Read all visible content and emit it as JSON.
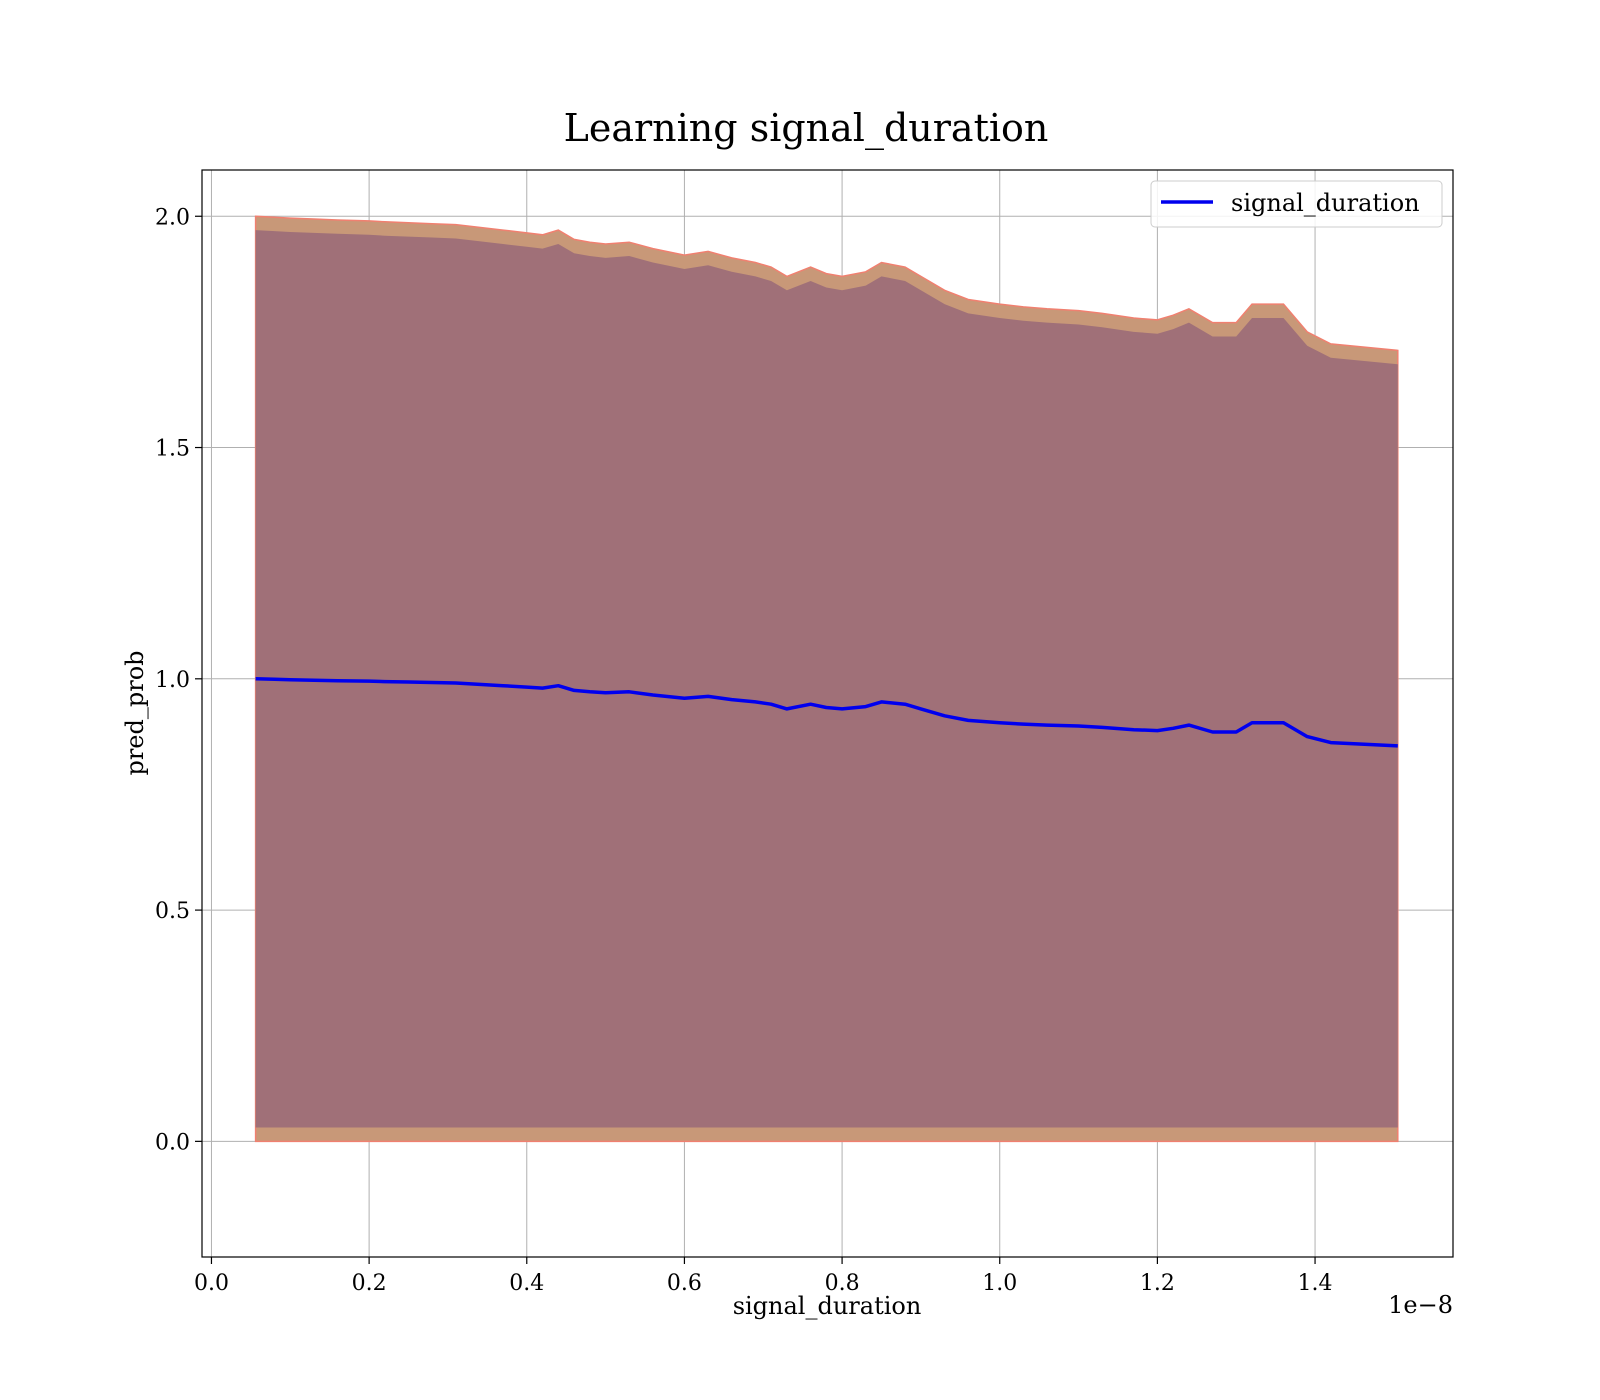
{
  "chart_data": {
    "type": "area",
    "title": "Learning signal_duration",
    "xlabel": "signal_duration",
    "ylabel": "pred_prob",
    "x_offset_text": "1e−8",
    "x_scale_note": "x values are multiples of 1e-8",
    "xlim": [
      -0.012,
      1.575
    ],
    "ylim": [
      -0.25,
      2.1
    ],
    "x_ticks": [
      0.0,
      0.2,
      0.4,
      0.6,
      0.8,
      1.0,
      1.2,
      1.4
    ],
    "x_tick_labels": [
      "0.0",
      "0.2",
      "0.4",
      "0.6",
      "0.8",
      "1.0",
      "1.2",
      "1.4"
    ],
    "y_ticks": [
      0.0,
      0.5,
      1.0,
      1.5,
      2.0
    ],
    "y_tick_labels": [
      "0.0",
      "0.5",
      "1.0",
      "1.5",
      "2.0"
    ],
    "grid": true,
    "legend_position": "top-right",
    "colors": {
      "line": "#0000ee",
      "outer_band": "#c89878",
      "outer_band_edge": "#f08070",
      "inner_band": "#a07078",
      "grid": "#b0b0b0"
    },
    "x": [
      0.056,
      0.08,
      0.1,
      0.13,
      0.16,
      0.2,
      0.22,
      0.25,
      0.28,
      0.31,
      0.34,
      0.37,
      0.4,
      0.42,
      0.44,
      0.46,
      0.48,
      0.5,
      0.53,
      0.56,
      0.6,
      0.63,
      0.66,
      0.69,
      0.71,
      0.73,
      0.76,
      0.78,
      0.8,
      0.83,
      0.85,
      0.88,
      0.9,
      0.93,
      0.96,
      1.0,
      1.03,
      1.06,
      1.1,
      1.13,
      1.17,
      1.2,
      1.22,
      1.24,
      1.27,
      1.3,
      1.32,
      1.36,
      1.39,
      1.42,
      1.505
    ],
    "series": [
      {
        "name": "signal_duration",
        "role": "mean",
        "values": [
          1.0,
          0.999,
          0.998,
          0.997,
          0.996,
          0.995,
          0.994,
          0.993,
          0.992,
          0.991,
          0.988,
          0.985,
          0.982,
          0.98,
          0.985,
          0.975,
          0.972,
          0.97,
          0.972,
          0.965,
          0.958,
          0.962,
          0.955,
          0.95,
          0.945,
          0.935,
          0.945,
          0.938,
          0.935,
          0.94,
          0.95,
          0.945,
          0.935,
          0.92,
          0.91,
          0.905,
          0.902,
          0.9,
          0.898,
          0.895,
          0.89,
          0.888,
          0.893,
          0.9,
          0.885,
          0.885,
          0.905,
          0.905,
          0.875,
          0.862,
          0.855
        ]
      },
      {
        "name": "outer upper",
        "role": "band",
        "values": [
          2.0,
          1.998,
          1.996,
          1.994,
          1.992,
          1.99,
          1.988,
          1.986,
          1.984,
          1.982,
          1.976,
          1.97,
          1.964,
          1.96,
          1.97,
          1.95,
          1.944,
          1.94,
          1.944,
          1.93,
          1.916,
          1.924,
          1.91,
          1.9,
          1.89,
          1.87,
          1.89,
          1.876,
          1.87,
          1.88,
          1.9,
          1.89,
          1.87,
          1.84,
          1.82,
          1.81,
          1.804,
          1.8,
          1.796,
          1.79,
          1.78,
          1.776,
          1.786,
          1.8,
          1.77,
          1.77,
          1.81,
          1.81,
          1.75,
          1.724,
          1.71
        ]
      },
      {
        "name": "inner upper",
        "role": "band",
        "values": [
          1.97,
          1.968,
          1.966,
          1.964,
          1.962,
          1.96,
          1.958,
          1.956,
          1.954,
          1.952,
          1.946,
          1.94,
          1.934,
          1.93,
          1.94,
          1.92,
          1.914,
          1.91,
          1.914,
          1.9,
          1.886,
          1.894,
          1.88,
          1.87,
          1.86,
          1.84,
          1.86,
          1.846,
          1.84,
          1.85,
          1.87,
          1.86,
          1.84,
          1.81,
          1.79,
          1.78,
          1.774,
          1.77,
          1.766,
          1.76,
          1.75,
          1.746,
          1.756,
          1.77,
          1.74,
          1.74,
          1.78,
          1.78,
          1.72,
          1.694,
          1.68
        ]
      },
      {
        "name": "inner lower",
        "role": "band",
        "values": [
          0.03,
          0.03,
          0.03,
          0.03,
          0.03,
          0.03,
          0.03,
          0.03,
          0.03,
          0.03,
          0.03,
          0.03,
          0.03,
          0.03,
          0.03,
          0.03,
          0.03,
          0.03,
          0.03,
          0.03,
          0.03,
          0.03,
          0.03,
          0.03,
          0.03,
          0.03,
          0.03,
          0.03,
          0.03,
          0.03,
          0.03,
          0.03,
          0.03,
          0.03,
          0.03,
          0.03,
          0.03,
          0.03,
          0.03,
          0.03,
          0.03,
          0.03,
          0.03,
          0.03,
          0.03,
          0.03,
          0.03,
          0.03,
          0.03,
          0.03,
          0.03
        ]
      },
      {
        "name": "outer lower",
        "role": "band",
        "values": [
          0.0,
          0.0,
          0.0,
          0.0,
          0.0,
          0.0,
          0.0,
          0.0,
          0.0,
          0.0,
          0.0,
          0.0,
          0.0,
          0.0,
          0.0,
          0.0,
          0.0,
          0.0,
          0.0,
          0.0,
          0.0,
          0.0,
          0.0,
          0.0,
          0.0,
          0.0,
          0.0,
          0.0,
          0.0,
          0.0,
          0.0,
          0.0,
          0.0,
          0.0,
          0.0,
          0.0,
          0.0,
          0.0,
          0.0,
          0.0,
          0.0,
          0.0,
          0.0,
          0.0,
          0.0,
          0.0,
          0.0,
          0.0,
          0.0,
          0.0,
          0.0
        ]
      }
    ]
  }
}
